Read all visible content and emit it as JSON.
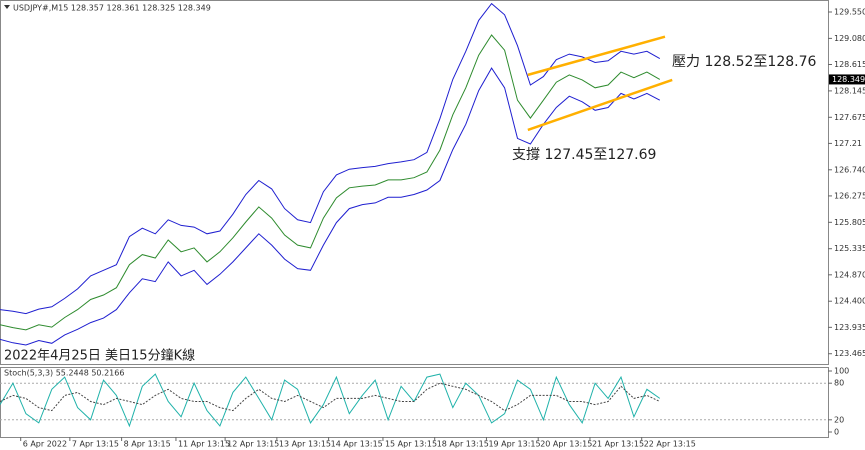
{
  "chart_data": [
    {
      "type": "line",
      "header": "USDJPY#,M15 128.357 128.361 128.325 128.349",
      "title": "2022年4月25日 美日15分鐘K線",
      "annotations": [
        "壓力 128.52至128.76",
        "支撐 127.45至127.69"
      ],
      "last_price": 128.349,
      "grid": false,
      "xlim": [
        0,
        16
      ],
      "ylim": [
        123.3,
        129.71
      ],
      "xticks": [
        {
          "value": 0.4,
          "label": "6 Apr 2022"
        },
        {
          "value": 1.35,
          "label": "7 Apr 13:15"
        },
        {
          "value": 2.35,
          "label": "8 Apr 13:15"
        },
        {
          "value": 3.4,
          "label": "11 Apr 13:15"
        },
        {
          "value": 4.35,
          "label": "12 Apr 13:15"
        },
        {
          "value": 5.35,
          "label": "13 Apr 13:15"
        },
        {
          "value": 6.35,
          "label": "14 Apr 13:15"
        },
        {
          "value": 7.4,
          "label": "15 Apr 13:15"
        },
        {
          "value": 8.4,
          "label": "18 Apr 13:15"
        },
        {
          "value": 9.4,
          "label": "19 Apr 13:15"
        },
        {
          "value": 10.4,
          "label": "20 Apr 13:15"
        },
        {
          "value": 11.4,
          "label": "21 Apr 13:15"
        },
        {
          "value": 12.4,
          "label": "22 Apr 13:15"
        }
      ],
      "yticks": [
        {
          "value": 129.55,
          "label": "129.550"
        },
        {
          "value": 129.08,
          "label": "129.080"
        },
        128.615,
        128.145,
        127.675,
        127.21,
        {
          "value": 126.74,
          "label": "126.740"
        },
        126.275,
        125.805,
        125.335,
        {
          "value": 124.87,
          "label": "124.870"
        },
        {
          "value": 124.4,
          "label": "124.400"
        },
        123.935,
        123.465
      ],
      "x": [
        0,
        0.25,
        0.5,
        0.75,
        1,
        1.25,
        1.5,
        1.75,
        2,
        2.25,
        2.5,
        2.75,
        3,
        3.25,
        3.5,
        3.75,
        4,
        4.25,
        4.5,
        4.75,
        5,
        5.25,
        5.5,
        5.75,
        6,
        6.25,
        6.5,
        6.75,
        7,
        7.25,
        7.5,
        7.75,
        8,
        8.25,
        8.5,
        8.75,
        9,
        9.25,
        9.5,
        9.75,
        10,
        10.25,
        10.5,
        10.75,
        11,
        11.25,
        11.5,
        11.75,
        12,
        12.25,
        12.5,
        12.75
      ],
      "series": [
        {
          "color": "#1f1fd0",
          "values": [
            124.25,
            124.22,
            124.18,
            124.26,
            124.3,
            124.45,
            124.62,
            124.85,
            124.95,
            125.05,
            125.55,
            125.7,
            125.6,
            125.85,
            125.75,
            125.72,
            125.6,
            125.65,
            125.95,
            126.3,
            126.55,
            126.4,
            126.05,
            125.85,
            125.8,
            126.35,
            126.65,
            126.75,
            126.78,
            126.8,
            126.85,
            126.88,
            126.92,
            127.05,
            127.65,
            128.35,
            128.85,
            129.4,
            129.7,
            129.5,
            128.95,
            128.25,
            128.4,
            128.7,
            128.8,
            128.75,
            128.65,
            128.68,
            128.85,
            128.8,
            128.85,
            128.72
          ]
        },
        {
          "color": "#1f1fd0",
          "values": [
            123.72,
            123.66,
            123.62,
            123.7,
            123.65,
            123.8,
            123.9,
            124.02,
            124.1,
            124.25,
            124.55,
            124.8,
            124.75,
            125.1,
            124.85,
            124.95,
            124.7,
            124.88,
            125.1,
            125.35,
            125.6,
            125.4,
            125.15,
            124.98,
            124.95,
            125.4,
            125.8,
            126.05,
            126.12,
            126.15,
            126.25,
            126.25,
            126.3,
            126.38,
            126.55,
            127.1,
            127.55,
            128.15,
            128.55,
            128.2,
            127.3,
            127.2,
            127.55,
            127.85,
            128.05,
            127.95,
            127.8,
            127.85,
            128.1,
            128.0,
            128.1,
            127.98
          ]
        },
        {
          "color": "#2e8b2e",
          "values": [
            123.98,
            123.93,
            123.89,
            123.98,
            123.94,
            124.11,
            124.25,
            124.43,
            124.51,
            124.64,
            125.05,
            125.23,
            125.17,
            125.49,
            125.28,
            125.35,
            125.1,
            125.28,
            125.53,
            125.81,
            126.08,
            125.88,
            125.58,
            125.4,
            125.35,
            125.88,
            126.24,
            126.42,
            126.45,
            126.47,
            126.56,
            126.56,
            126.6,
            126.7,
            127.09,
            127.72,
            128.2,
            128.78,
            129.14,
            128.87,
            127.98,
            127.66,
            127.98,
            128.3,
            128.43,
            128.34,
            128.2,
            128.25,
            128.48,
            128.38,
            128.48,
            128.35
          ]
        }
      ],
      "trendlines": [
        {
          "color": "#ffb000",
          "x": [
            10.2,
            12.85
          ],
          "values": [
            128.43,
            129.11
          ]
        },
        {
          "color": "#ffb000",
          "x": [
            10.2,
            12.99
          ],
          "values": [
            127.45,
            128.34
          ]
        }
      ]
    },
    {
      "type": "line",
      "title": "Stoch(5,3,3) 55.2448 50.2166",
      "xlim": [
        0,
        16
      ],
      "ylim": [
        0,
        100
      ],
      "yticks": [
        100,
        80,
        20,
        0
      ],
      "levels": [
        80,
        20
      ],
      "x": [
        0,
        0.25,
        0.5,
        0.75,
        1,
        1.25,
        1.5,
        1.75,
        2,
        2.25,
        2.5,
        2.75,
        3,
        3.25,
        3.5,
        3.75,
        4,
        4.25,
        4.5,
        4.75,
        5,
        5.25,
        5.5,
        5.75,
        6,
        6.25,
        6.5,
        6.75,
        7,
        7.25,
        7.5,
        7.75,
        8,
        8.25,
        8.5,
        8.75,
        9,
        9.25,
        9.5,
        9.75,
        10,
        10.25,
        10.5,
        10.75,
        11,
        11.25,
        11.5,
        11.75,
        12,
        12.25,
        12.5,
        12.75
      ],
      "series": [
        {
          "color": "#20b2aa",
          "values": [
            45,
            80,
            30,
            15,
            70,
            90,
            40,
            20,
            85,
            60,
            10,
            75,
            95,
            50,
            25,
            80,
            35,
            10,
            65,
            90,
            55,
            20,
            85,
            70,
            15,
            45,
            90,
            30,
            60,
            85,
            20,
            75,
            50,
            90,
            95,
            40,
            80,
            60,
            15,
            30,
            85,
            70,
            20,
            90,
            45,
            15,
            80,
            55,
            90,
            25,
            70,
            55
          ]
        },
        {
          "color": "#444444",
          "dashed": true,
          "values": [
            50,
            60,
            55,
            40,
            35,
            60,
            65,
            50,
            45,
            55,
            50,
            45,
            60,
            70,
            55,
            50,
            50,
            40,
            35,
            55,
            70,
            55,
            50,
            60,
            50,
            40,
            55,
            55,
            55,
            60,
            55,
            50,
            50,
            70,
            80,
            75,
            70,
            60,
            50,
            35,
            45,
            60,
            60,
            60,
            50,
            50,
            45,
            50,
            75,
            55,
            60,
            50
          ]
        }
      ]
    }
  ]
}
